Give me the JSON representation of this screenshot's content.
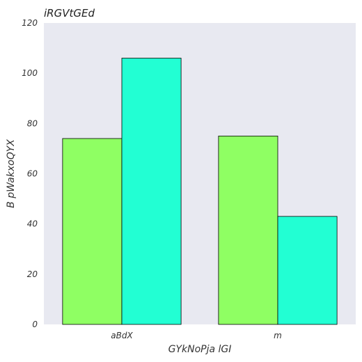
{
  "chart_data": {
    "type": "bar",
    "title": "iRGVtGEd",
    "xlabel": "GYkNoPja lGI",
    "ylabel": "B pWakxoQYX",
    "categories": [
      "aBdX",
      "m"
    ],
    "series": [
      {
        "values": [
          74,
          75
        ],
        "color": "#8fff63"
      },
      {
        "values": [
          106,
          43
        ],
        "color": "#22ffd3"
      }
    ],
    "ylim": [
      0,
      120
    ],
    "yticks": [
      0,
      20,
      40,
      60,
      80,
      100,
      120
    ],
    "grid": false,
    "background": "#e8e9f1",
    "bar_edge_color": "#000000"
  }
}
